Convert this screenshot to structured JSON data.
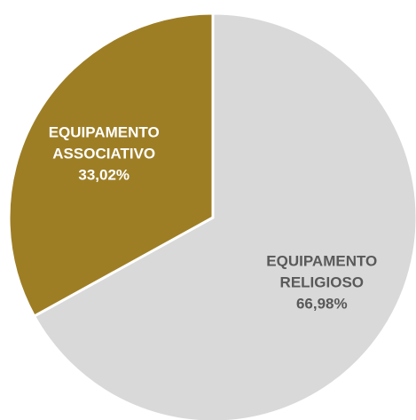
{
  "chart_data": {
    "type": "pie",
    "title": "",
    "slices": [
      {
        "label_lines": [
          "EQUIPAMENTO",
          "RELIGIOSO"
        ],
        "value": 66.98,
        "value_label": "66,98%",
        "color": "#d9d9d9",
        "label_color": "#595959"
      },
      {
        "label_lines": [
          "EQUIPAMENTO",
          "ASSOCIATIVO"
        ],
        "value": 33.02,
        "value_label": "33,02%",
        "color": "#9e7e25",
        "label_color": "#ffffff"
      }
    ],
    "start_angle_deg": 0,
    "direction": "clockwise",
    "legend": "none"
  }
}
